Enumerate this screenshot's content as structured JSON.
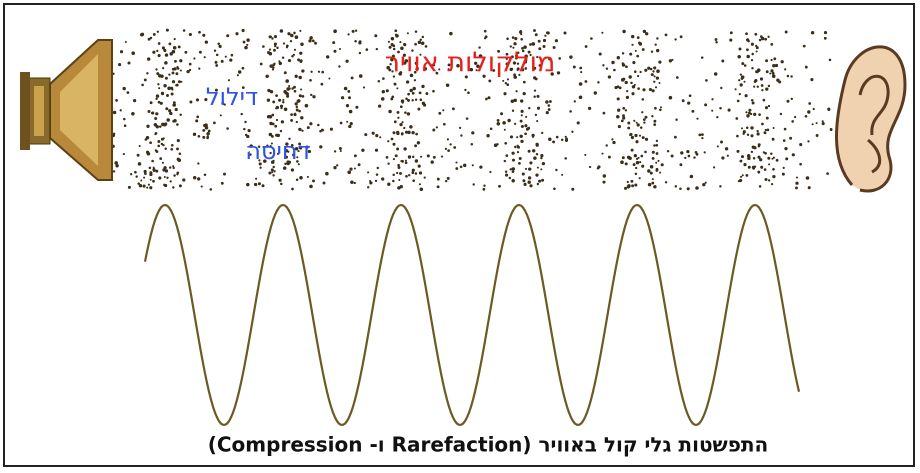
{
  "diagram": {
    "labels": {
      "air_molecules": "מולקולות אוויר",
      "rarefaction": "דילול",
      "compression": "דחיסה"
    },
    "caption": "התפשטות גלי קול באוויר (Rarefaction ו- Compression)"
  }
}
